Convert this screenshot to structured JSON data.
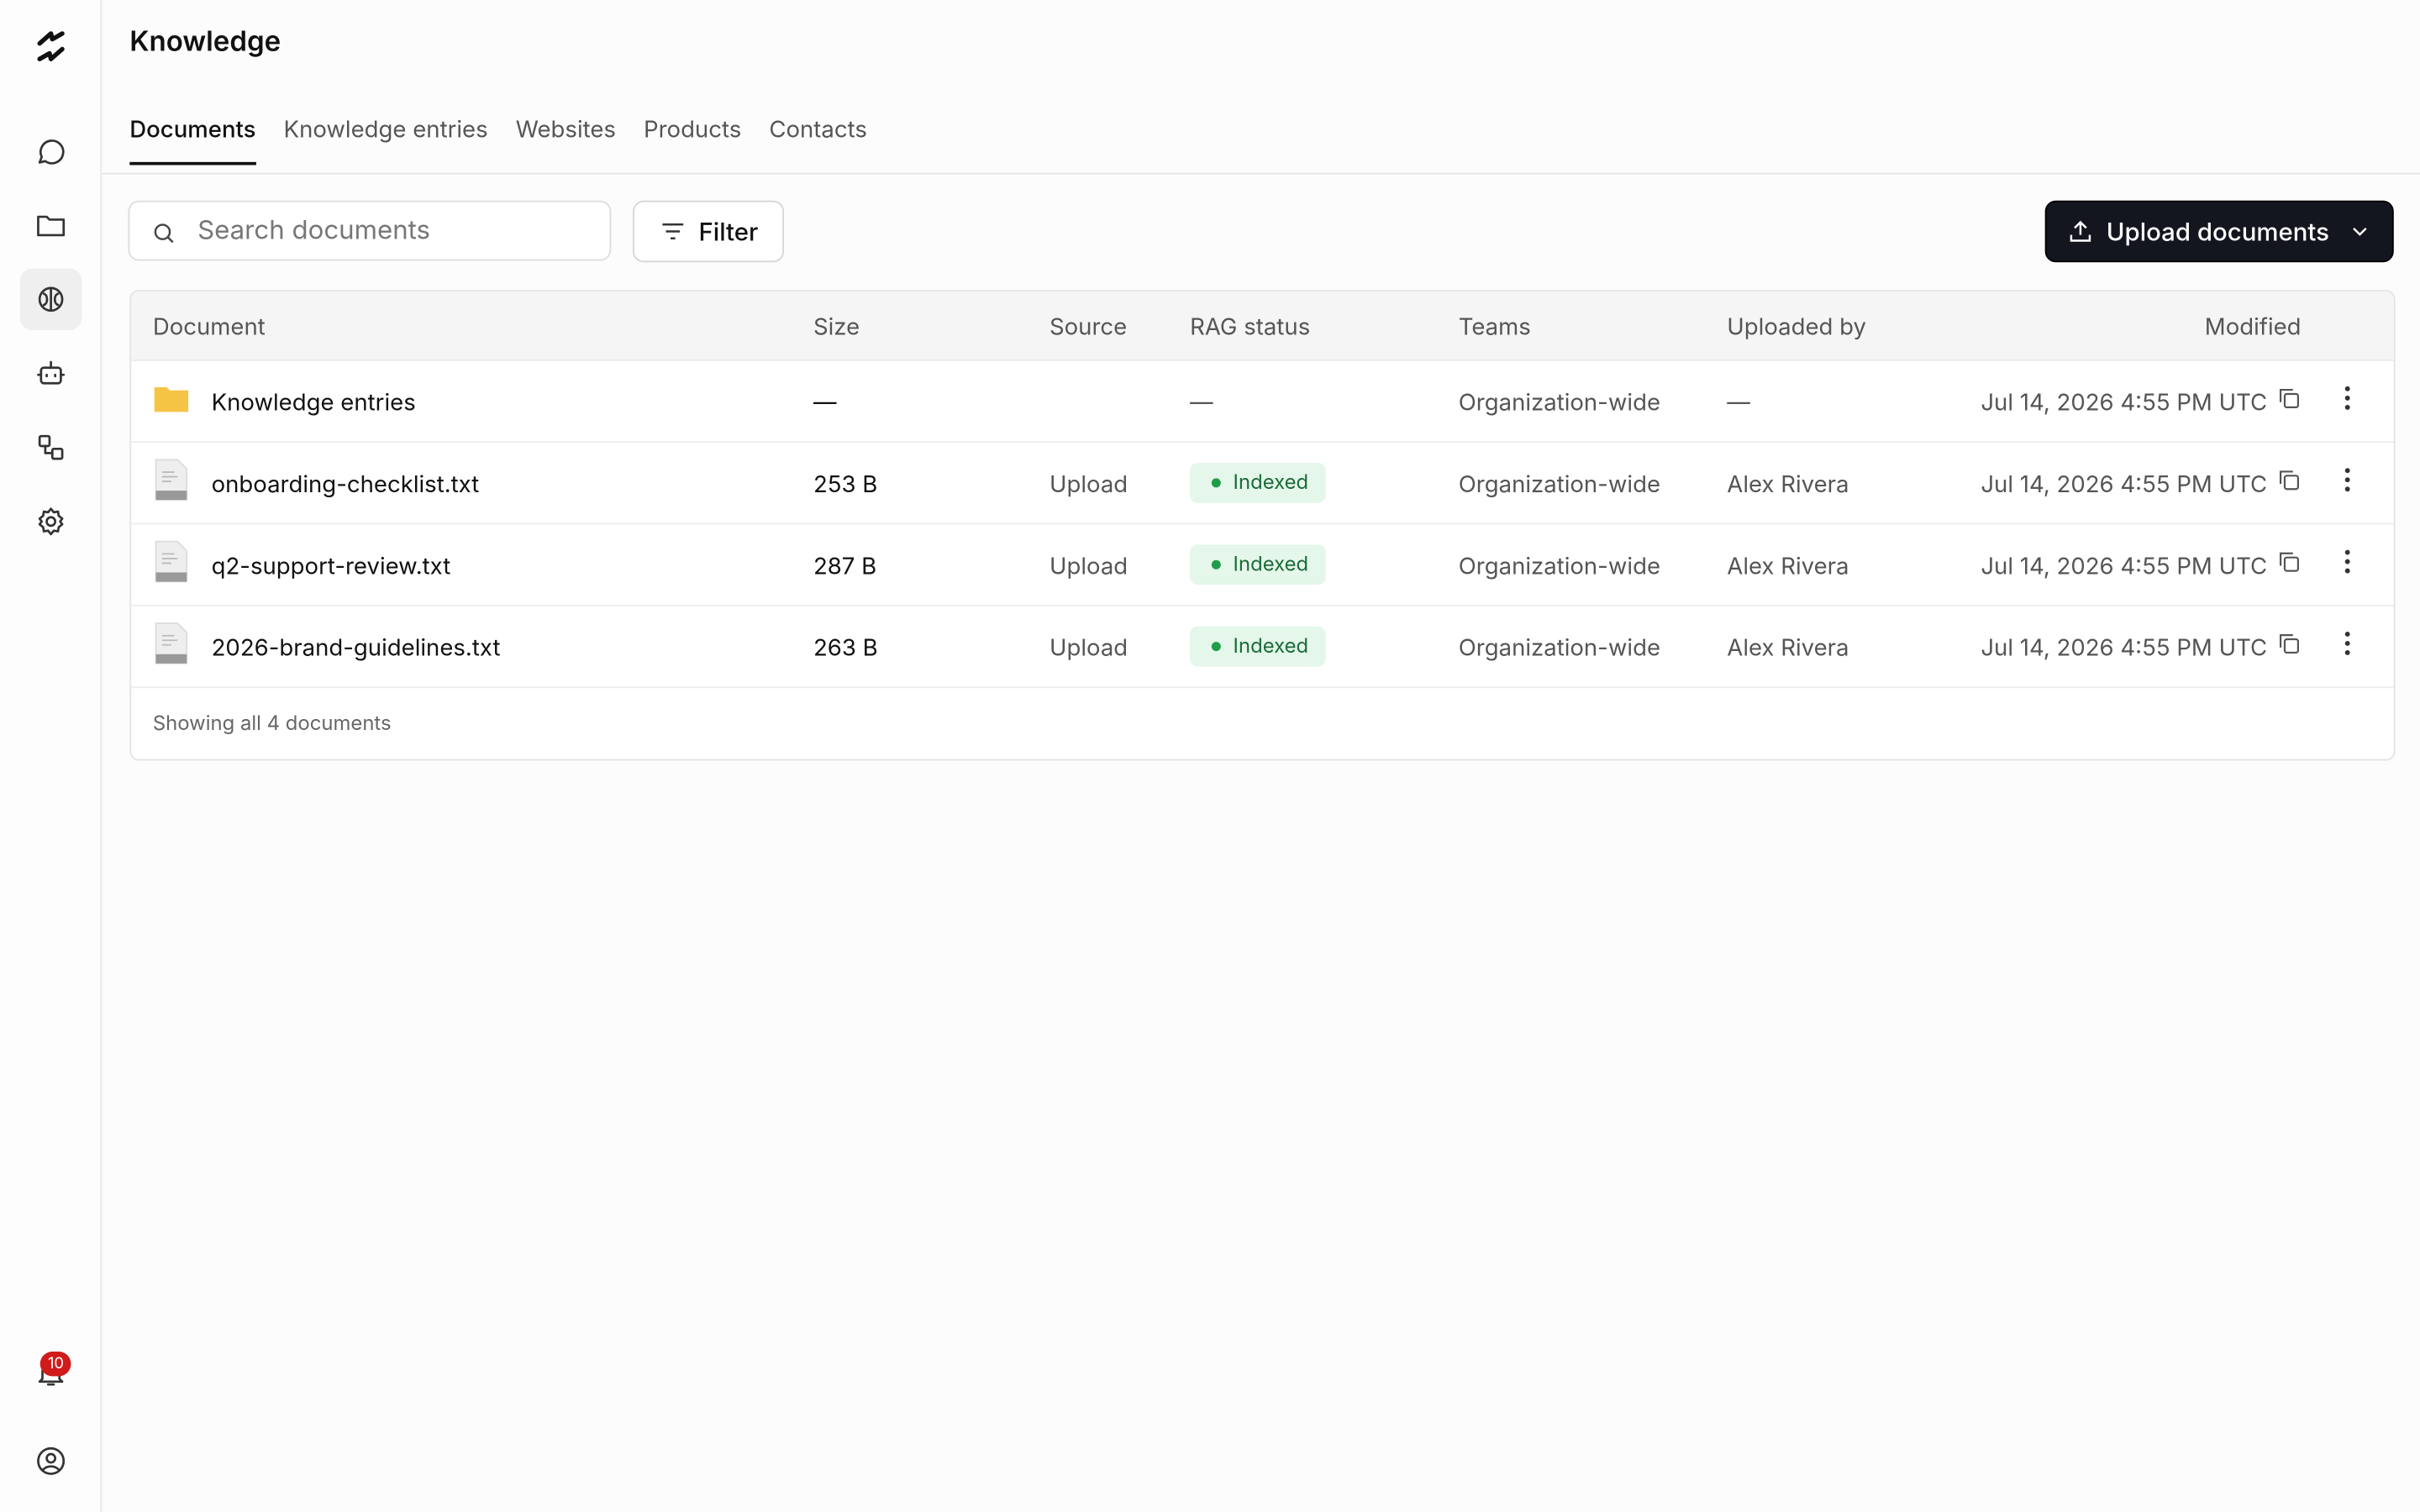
{
  "header": {
    "title": "Knowledge"
  },
  "tabs": [
    "Documents",
    "Knowledge entries",
    "Websites",
    "Products",
    "Contacts"
  ],
  "toolbar": {
    "search_placeholder": "Search documents",
    "filter": "Filter",
    "upload": "Upload documents"
  },
  "table": {
    "columns": [
      "Document",
      "Size",
      "Source",
      "RAG status",
      "Teams",
      "Uploaded by",
      "Modified"
    ],
    "rows": [
      {
        "kind": "folder",
        "document": "Knowledge entries",
        "size": "—",
        "source": null,
        "rag_status": "—",
        "teams": "Organization-wide",
        "uploaded_by": "—",
        "modified": "Jul 14, 2026 4:55 PM UTC"
      },
      {
        "kind": "file",
        "document": "onboarding-checklist.txt",
        "size": "253 B",
        "source": "Upload",
        "rag_status": "Indexed",
        "teams": "Organization-wide",
        "uploaded_by": "Alex Rivera",
        "modified": "Jul 14, 2026 4:55 PM UTC"
      },
      {
        "kind": "file",
        "document": "q2-support-review.txt",
        "size": "287 B",
        "source": "Upload",
        "rag_status": "Indexed",
        "teams": "Organization-wide",
        "uploaded_by": "Alex Rivera",
        "modified": "Jul 14, 2026 4:55 PM UTC"
      },
      {
        "kind": "file",
        "document": "2026-brand-guidelines.txt",
        "size": "263 B",
        "source": "Upload",
        "rag_status": "Indexed",
        "teams": "Organization-wide",
        "uploaded_by": "Alex Rivera",
        "modified": "Jul 14, 2026 4:55 PM UTC"
      }
    ],
    "footer": "Showing all 4 documents"
  },
  "sidebar": {
    "notification_count": "10"
  }
}
